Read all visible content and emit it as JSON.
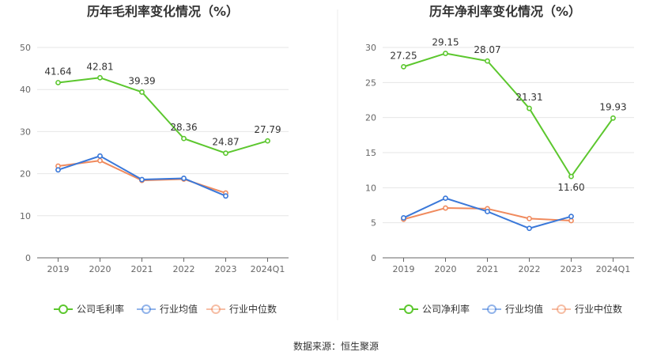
{
  "source": "数据来源：恒生聚源",
  "chart_data": [
    {
      "type": "line",
      "title": "历年毛利率变化情况（%）",
      "categories": [
        "2019",
        "2020",
        "2021",
        "2022",
        "2023",
        "2024Q1"
      ],
      "ylim": [
        0,
        50
      ],
      "yticks": [
        0,
        10,
        20,
        30,
        40,
        50
      ],
      "grid": true,
      "legend_position": "bottom",
      "series": [
        {
          "name": "公司毛利率",
          "color": "#5cc72e",
          "values": [
            41.64,
            42.81,
            39.39,
            28.36,
            24.87,
            27.79
          ],
          "labels": [
            "41.64",
            "42.81",
            "39.39",
            "28.36",
            "24.87",
            "27.79"
          ]
        },
        {
          "name": "行业均值",
          "color": "#3a78d9",
          "values": [
            20.9,
            24.2,
            18.6,
            18.9,
            14.7,
            null
          ]
        },
        {
          "name": "行业中位数",
          "color": "#f08a5d",
          "values": [
            21.8,
            23.1,
            18.4,
            18.7,
            15.4,
            null
          ]
        }
      ]
    },
    {
      "type": "line",
      "title": "历年净利率变化情况（%）",
      "categories": [
        "2019",
        "2020",
        "2021",
        "2022",
        "2023",
        "2024Q1"
      ],
      "ylim": [
        0,
        30
      ],
      "yticks": [
        0,
        5,
        10,
        15,
        20,
        25,
        30
      ],
      "grid": true,
      "legend_position": "bottom",
      "series": [
        {
          "name": "公司净利率",
          "color": "#5cc72e",
          "values": [
            27.25,
            29.15,
            28.07,
            21.31,
            11.6,
            19.93
          ],
          "labels": [
            "27.25",
            "29.15",
            "28.07",
            "21.31",
            "11.60",
            "19.93"
          ]
        },
        {
          "name": "行业均值",
          "color": "#3a78d9",
          "values": [
            5.7,
            8.5,
            6.6,
            4.2,
            5.9,
            null
          ]
        },
        {
          "name": "行业中位数",
          "color": "#f08a5d",
          "values": [
            5.5,
            7.1,
            7.0,
            5.6,
            5.3,
            null
          ]
        }
      ]
    }
  ]
}
